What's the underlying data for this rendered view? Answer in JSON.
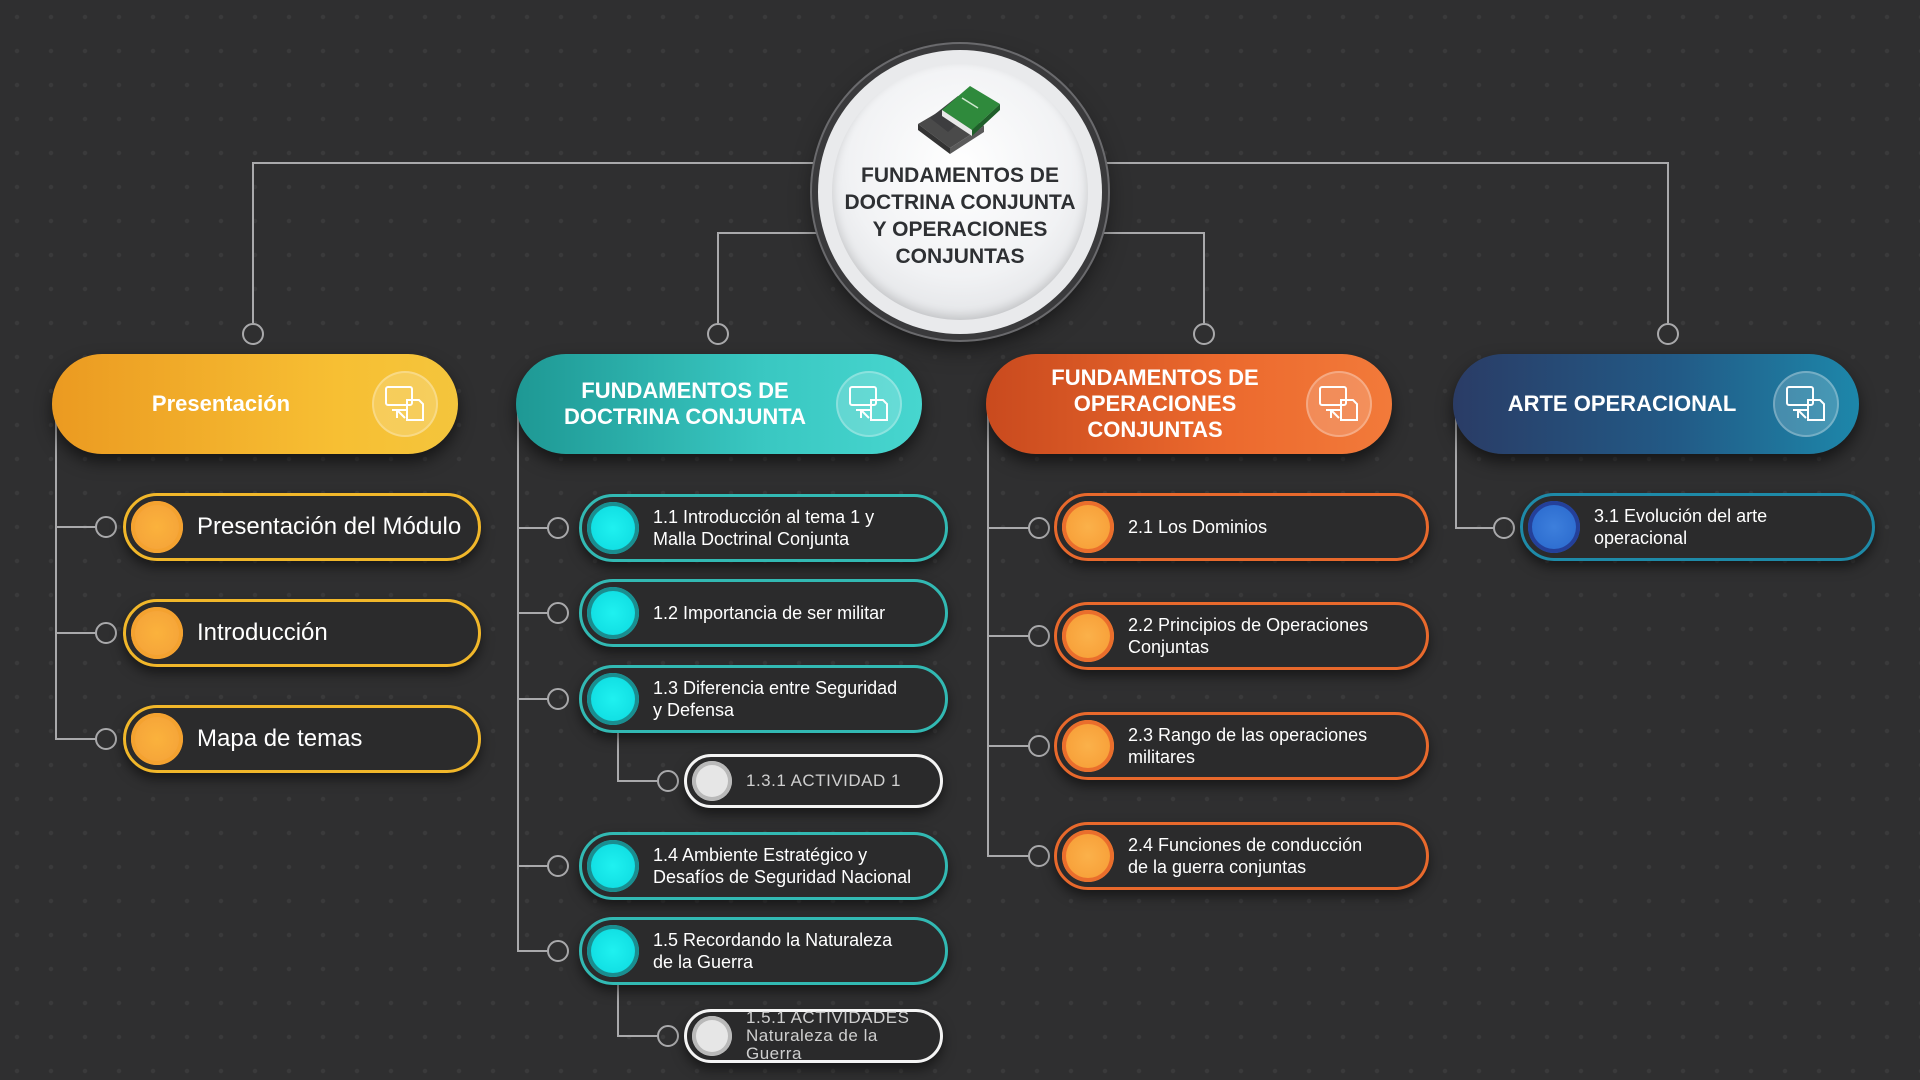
{
  "hub": {
    "title": "FUNDAMENTOS DE\nDOCTRINA CONJUNTA\nY OPERACIONES\nCONJUNTAS",
    "icon": "books-icon"
  },
  "columns": [
    {
      "id": "presentacion",
      "title": "Presentación",
      "color": "#f2ba2d",
      "icon": "computer-document-icon",
      "items": [
        {
          "label": "Presentación del Módulo"
        },
        {
          "label": "Introducción"
        },
        {
          "label": "Mapa de temas"
        }
      ]
    },
    {
      "id": "doctrina",
      "title": "FUNDAMENTOS DE\nDOCTRINA CONJUNTA",
      "color": "#32b9b3",
      "icon": "computer-document-icon",
      "items": [
        {
          "label": "1.1 Introducción al tema 1 y\nMalla Doctrinal Conjunta"
        },
        {
          "label": "1.2 Importancia de ser militar"
        },
        {
          "label": "1.3 Diferencia entre Seguridad\ny Defensa"
        },
        {
          "label": "1.3.1  ACTIVIDAD 1"
        },
        {
          "label": "1.4 Ambiente Estratégico y\nDesafíos de Seguridad Nacional"
        },
        {
          "label": "1.5 Recordando la Naturaleza\nde la Guerra"
        },
        {
          "label": "1.5.1  ACTIVIDADES\nNaturaleza de la Guerra"
        }
      ]
    },
    {
      "id": "operaciones",
      "title": "FUNDAMENTOS DE\nOPERACIONES CONJUNTAS",
      "color": "#e8692c",
      "icon": "computer-document-icon",
      "items": [
        {
          "label": "2.1 Los Dominios"
        },
        {
          "label": "2.2 Principios de  Operaciones\nConjuntas"
        },
        {
          "label": "2.3 Rango de las operaciones\nmilitares"
        },
        {
          "label": "2.4 Funciones de conducción\nde la guerra conjuntas"
        }
      ]
    },
    {
      "id": "arte",
      "title": "ARTE OPERACIONAL",
      "color": "#1e8aa8",
      "icon": "computer-document-icon",
      "items": [
        {
          "label": "3.1 Evolución del arte\noperacional"
        }
      ]
    }
  ]
}
